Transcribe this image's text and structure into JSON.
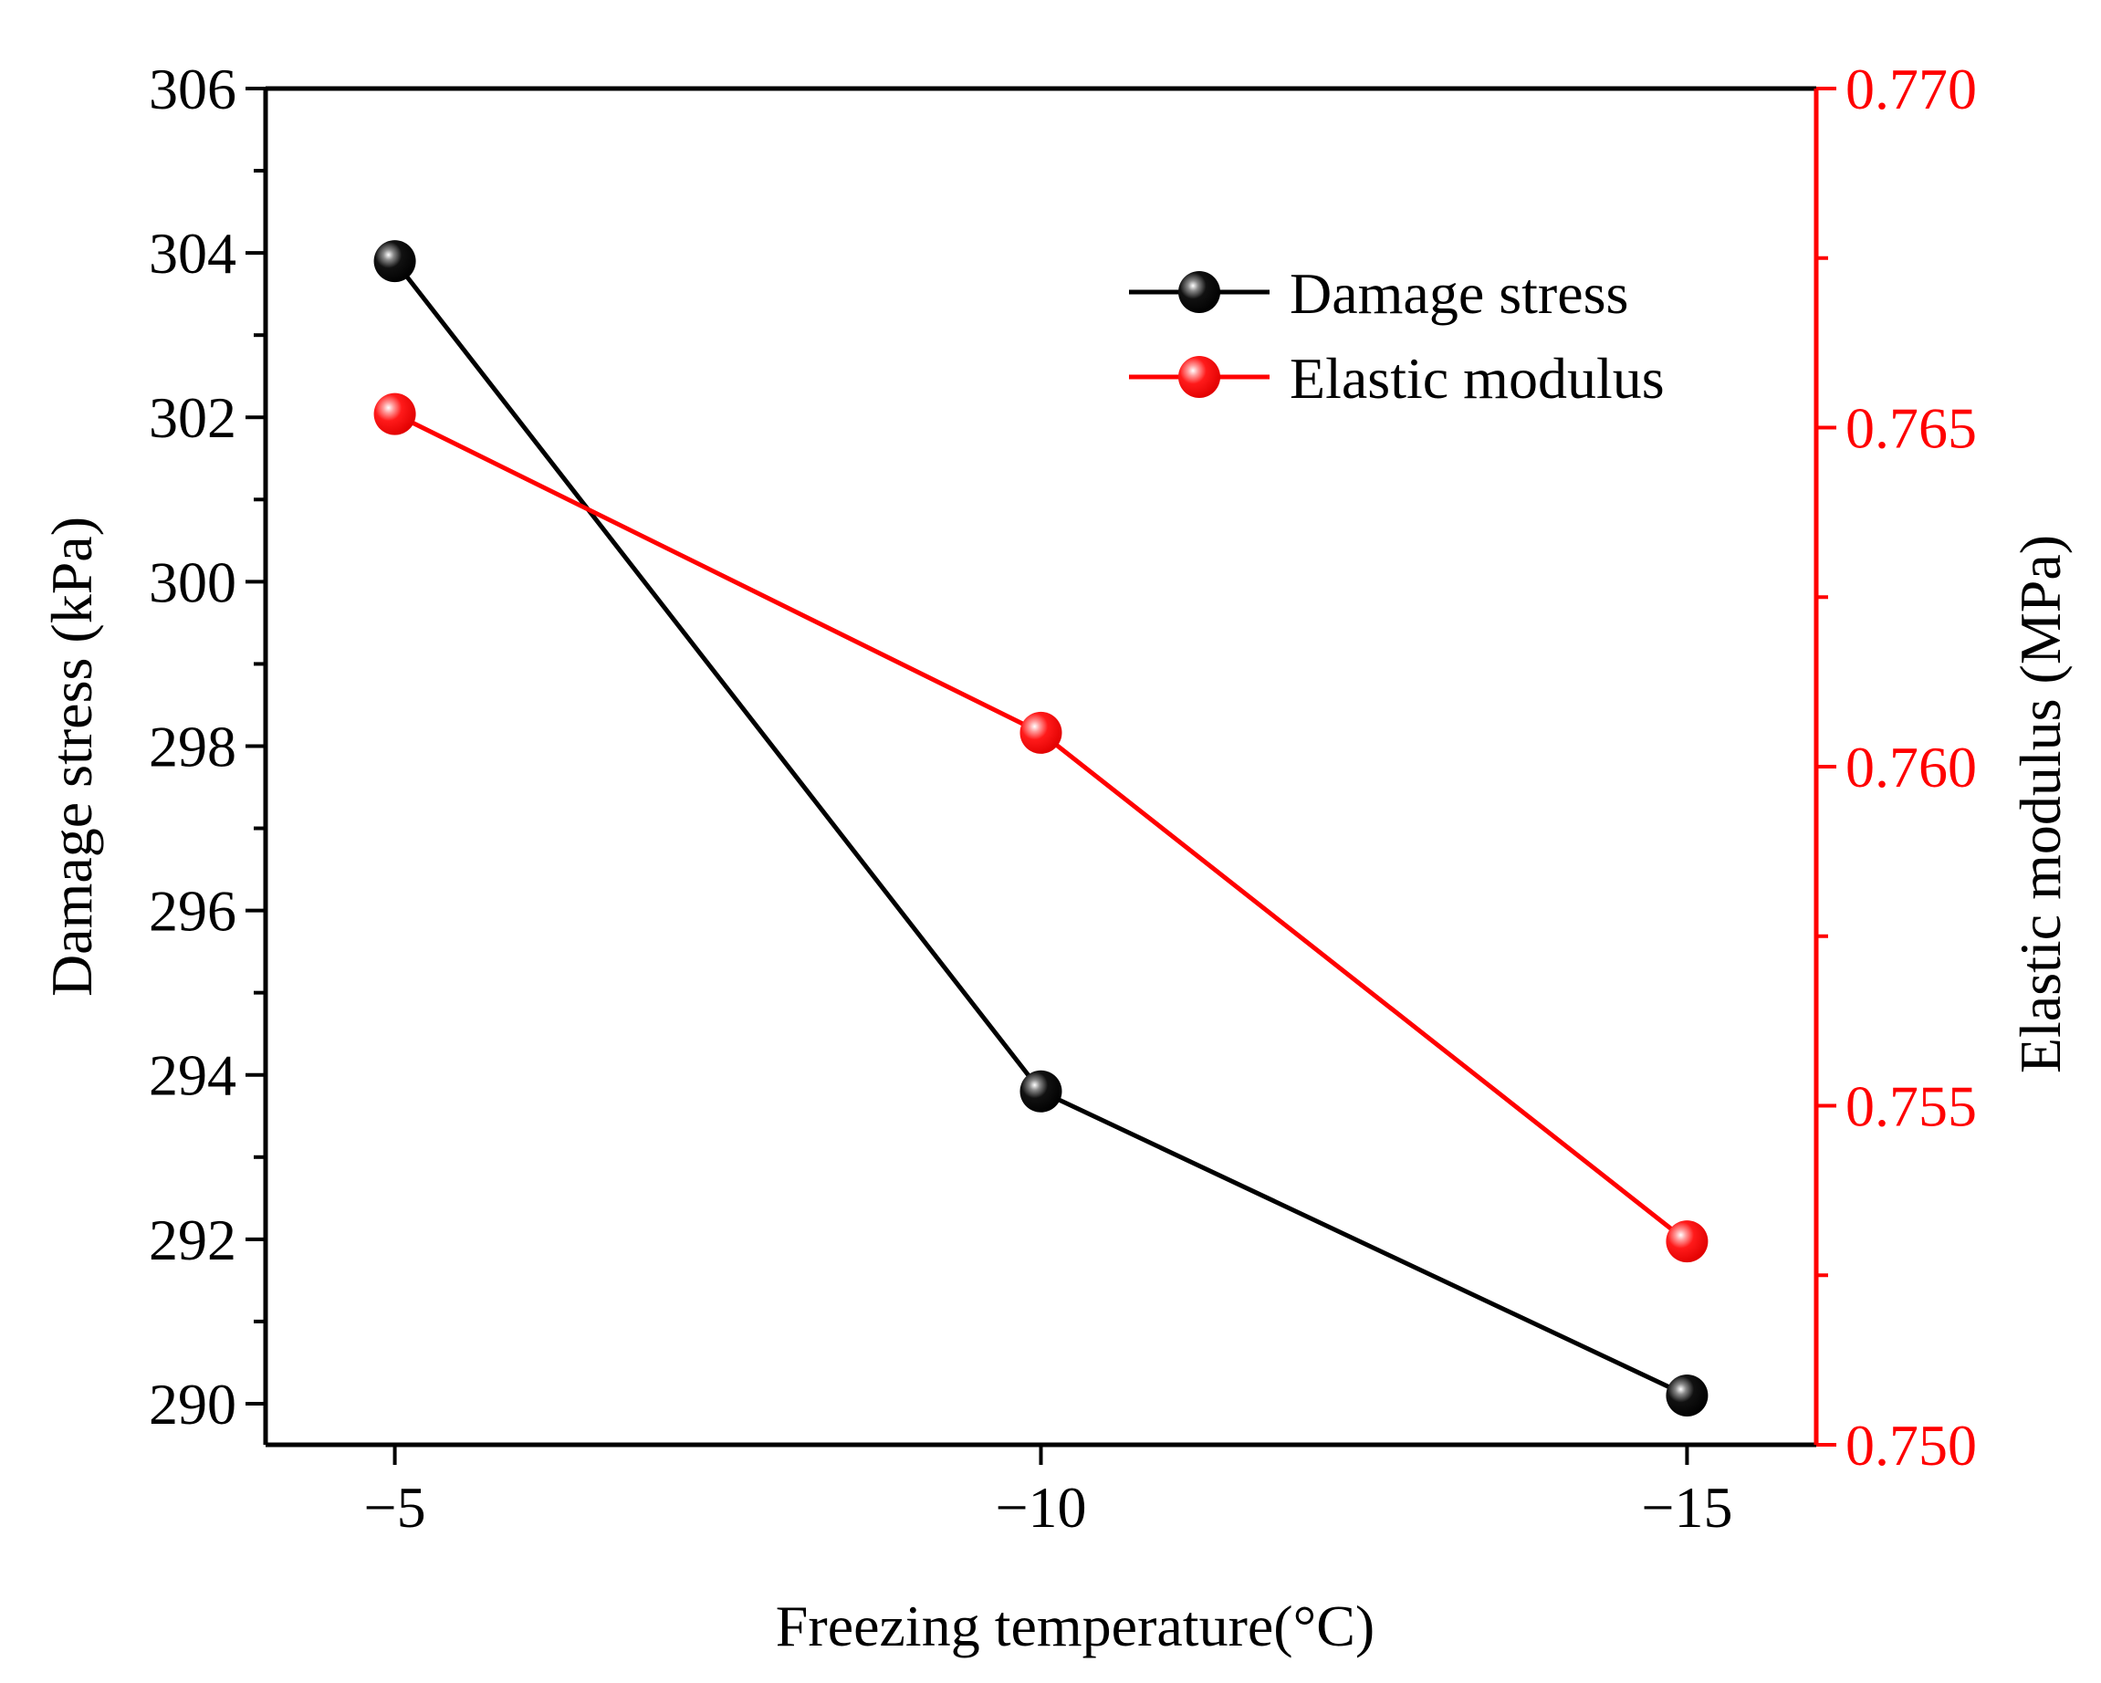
{
  "chart_data": {
    "type": "line",
    "x": [
      -5,
      -10,
      -15
    ],
    "x_tick_labels": [
      "−5",
      "−10",
      "−15"
    ],
    "xlabel": "Freezing temperature(°C)",
    "xlim": [
      -4,
      -16
    ],
    "ylabel_left": "Damage stress (kPa)",
    "ylabel_right": "Elastic modulus (MPa)",
    "ylim_left": [
      289.5,
      306
    ],
    "ylim_right": [
      0.75,
      0.77
    ],
    "y_ticks_left": [
      290,
      292,
      294,
      296,
      298,
      300,
      302,
      304,
      306
    ],
    "y_tick_labels_left": [
      "290",
      "292",
      "294",
      "296",
      "298",
      "300",
      "302",
      "304",
      "306"
    ],
    "y_ticks_right": [
      0.75,
      0.755,
      0.76,
      0.765,
      0.77
    ],
    "y_tick_labels_right": [
      "0.750",
      "0.755",
      "0.760",
      "0.765",
      "0.770"
    ],
    "series": [
      {
        "name": "Damage stress",
        "axis": "left",
        "color": "#000000",
        "values": [
          303.9,
          293.8,
          290.1
        ]
      },
      {
        "name": "Elastic modulus",
        "axis": "right",
        "color": "#ff0000",
        "values": [
          0.7652,
          0.7605,
          0.753
        ]
      }
    ],
    "legend_position": "top-right",
    "grid": false
  }
}
